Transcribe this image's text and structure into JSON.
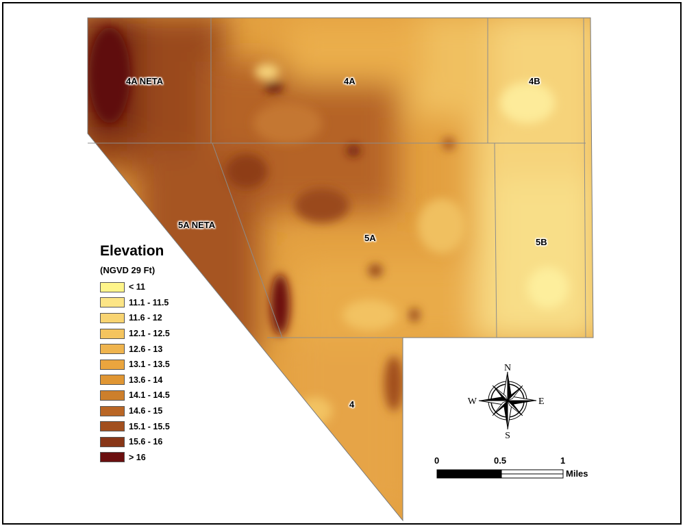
{
  "legend": {
    "title": "Elevation",
    "subtitle": "(NGVD 29 Ft)",
    "items": [
      {
        "label": "< 11",
        "color": "#FEF58A"
      },
      {
        "label": "11.1 - 11.5",
        "color": "#FCE586"
      },
      {
        "label": "11.6 - 12",
        "color": "#F8D472"
      },
      {
        "label": "12.1 - 12.5",
        "color": "#F4C45E"
      },
      {
        "label": "12.6 - 13",
        "color": "#EFB44E"
      },
      {
        "label": "13.1 - 13.5",
        "color": "#EAA53E"
      },
      {
        "label": "13.6 - 14",
        "color": "#E09633"
      },
      {
        "label": "14.1 - 14.5",
        "color": "#CD7F2B"
      },
      {
        "label": "14.6 - 15",
        "color": "#B96625"
      },
      {
        "label": "15.1 - 15.5",
        "color": "#A24F1E"
      },
      {
        "label": "15.6 - 16",
        "color": "#883617"
      },
      {
        "label": "> 16",
        "color": "#6B0F0F"
      }
    ]
  },
  "areas": [
    {
      "id": "4A NETA",
      "label": "4A NETA"
    },
    {
      "id": "4A",
      "label": "4A"
    },
    {
      "id": "4B",
      "label": "4B"
    },
    {
      "id": "5A NETA",
      "label": "5A NETA"
    },
    {
      "id": "5A",
      "label": "5A"
    },
    {
      "id": "5B",
      "label": "5B"
    },
    {
      "id": "4",
      "label": "4"
    }
  ],
  "compass": {
    "n": "N",
    "s": "S",
    "e": "E",
    "w": "W"
  },
  "scale_bar": {
    "ticks": [
      "0",
      "0.5",
      "1"
    ],
    "unit": "Miles"
  }
}
